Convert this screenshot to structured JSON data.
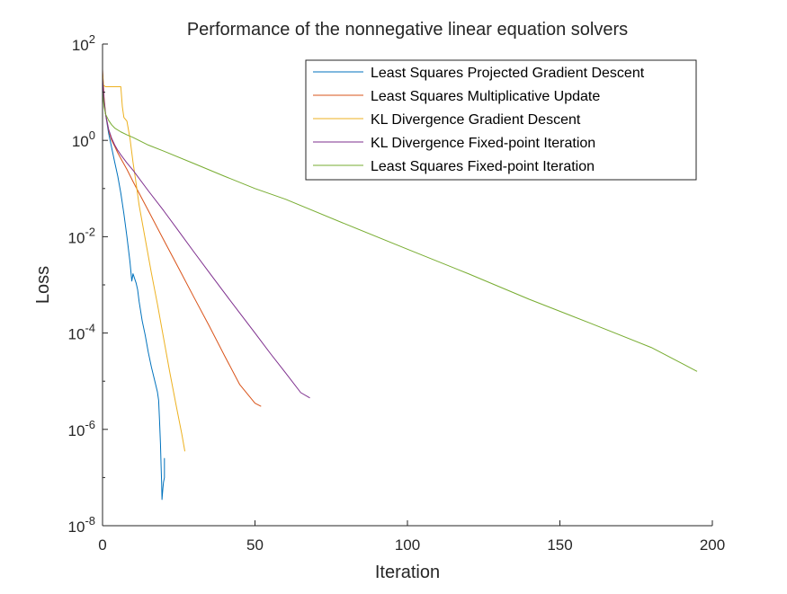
{
  "chart_data": {
    "type": "line",
    "title": "Performance of the nonnegative linear equation solvers",
    "xlabel": "Iteration",
    "ylabel": "Loss",
    "xlim": [
      0,
      200
    ],
    "ylim": [
      1e-08,
      100
    ],
    "yscale": "log",
    "grid": false,
    "legend_position": "top-right",
    "x_ticks": [
      0,
      50,
      100,
      150,
      200
    ],
    "x_tick_labels": [
      "0",
      "50",
      "100",
      "150",
      "200"
    ],
    "y_ticks": [
      1e-08,
      1e-06,
      0.0001,
      0.01,
      1,
      100
    ],
    "y_tick_labels": [
      {
        "base": "10",
        "exp": "-8"
      },
      {
        "base": "10",
        "exp": "-6"
      },
      {
        "base": "10",
        "exp": "-4"
      },
      {
        "base": "10",
        "exp": "-2"
      },
      {
        "base": "10",
        "exp": "0"
      },
      {
        "base": "10",
        "exp": "2"
      }
    ],
    "series": [
      {
        "name": "Least Squares Projected Gradient Descent",
        "color": "#0072BD",
        "x": [
          0,
          0.5,
          1,
          2,
          3,
          4,
          5,
          6,
          7,
          8,
          9,
          9.6,
          10,
          11,
          11.5,
          12,
          13,
          14,
          15,
          16,
          17,
          18,
          18.4,
          18.7,
          19,
          19.2,
          19.4,
          19.5,
          19.8,
          20,
          20.3,
          20.3,
          20.3
        ],
        "y": [
          10,
          6,
          3.5,
          1.4,
          0.7,
          0.35,
          0.18,
          0.08,
          0.03,
          0.01,
          0.003,
          0.0012,
          0.0017,
          0.0011,
          0.0008,
          0.00045,
          0.00018,
          9e-05,
          4e-05,
          2e-05,
          1.1e-05,
          6e-06,
          4e-06,
          1.5e-06,
          5e-07,
          1.8e-07,
          7e-08,
          3.5e-08,
          6e-08,
          8e-08,
          1e-07,
          2.5e-07,
          1.7e-07
        ]
      },
      {
        "name": "Least Squares Multiplicative Update",
        "color": "#D95319",
        "x": [
          0,
          0.5,
          1,
          2,
          3,
          4,
          5,
          6,
          8,
          10,
          12,
          15,
          20,
          25,
          30,
          35,
          40,
          45,
          50,
          52
        ],
        "y": [
          30,
          8,
          3.5,
          1.6,
          1.0,
          0.75,
          0.55,
          0.42,
          0.25,
          0.14,
          0.08,
          0.035,
          0.0087,
          0.0022,
          0.00055,
          0.00014,
          3.4e-05,
          8.5e-06,
          3.5e-06,
          3e-06
        ]
      },
      {
        "name": "KL Divergence Gradient Descent",
        "color": "#EDB120",
        "x": [
          0,
          0.3,
          1,
          6,
          6.5,
          7,
          8,
          9,
          10,
          11,
          12,
          14,
          16,
          18,
          20,
          22,
          24,
          26,
          27
        ],
        "y": [
          25,
          14,
          13,
          13,
          5,
          3,
          2.5,
          1.1,
          0.35,
          0.13,
          0.045,
          0.009,
          0.0018,
          0.0004,
          8e-05,
          1.6e-05,
          3.5e-06,
          8e-07,
          3.5e-07
        ]
      },
      {
        "name": "KL Divergence Fixed-point Iteration",
        "color": "#7E2F8E",
        "x": [
          0,
          0.5,
          1,
          2,
          3,
          4,
          5,
          6,
          8,
          10,
          15,
          20,
          25,
          30,
          35,
          40,
          45,
          50,
          55,
          60,
          65,
          68
        ],
        "y": [
          20,
          7,
          3.5,
          1.7,
          1.1,
          0.8,
          0.62,
          0.5,
          0.34,
          0.24,
          0.09,
          0.035,
          0.013,
          0.0048,
          0.0018,
          0.00068,
          0.00026,
          0.0001,
          3.8e-05,
          1.5e-05,
          5.8e-06,
          4.5e-06
        ]
      },
      {
        "name": "Least Squares Fixed-point Iteration",
        "color": "#77AC30",
        "x": [
          0,
          0.5,
          1,
          2,
          3,
          4,
          6,
          8,
          10,
          15,
          20,
          30,
          40,
          50,
          60,
          80,
          100,
          120,
          140,
          160,
          180,
          195
        ],
        "y": [
          10,
          5,
          3.5,
          2.6,
          2.1,
          1.8,
          1.5,
          1.3,
          1.15,
          0.8,
          0.6,
          0.33,
          0.18,
          0.1,
          0.06,
          0.018,
          0.0055,
          0.0017,
          0.0005,
          0.00016,
          5e-05,
          1.6e-05
        ]
      }
    ]
  }
}
